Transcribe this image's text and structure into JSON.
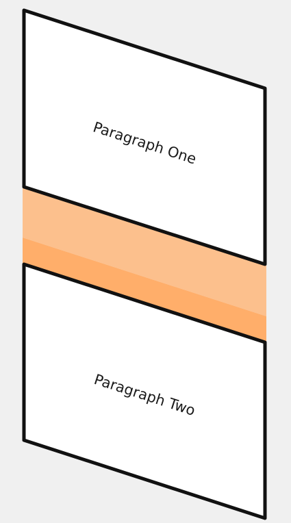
{
  "paragraphs": [
    {
      "label": "Paragraph One"
    },
    {
      "label": "Paragraph Two"
    }
  ],
  "colors": {
    "background": "#f0f0f0",
    "panel_fill": "#ffffff",
    "panel_stroke": "#111111",
    "gap_light": "#fcc08d",
    "gap_dark": "#ffae6a"
  }
}
